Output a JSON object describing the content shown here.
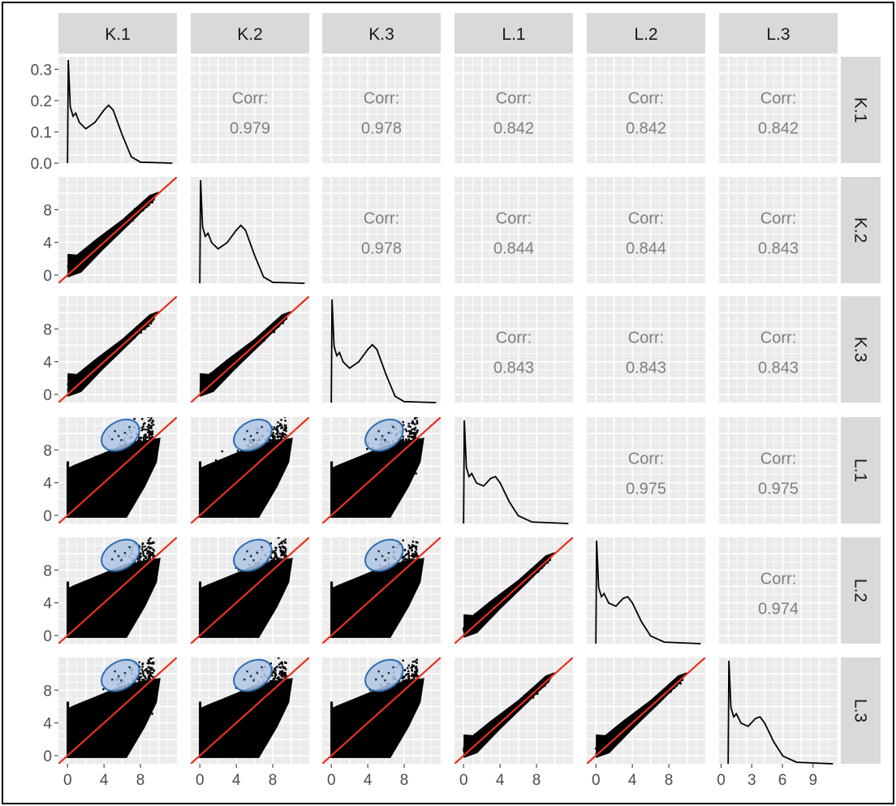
{
  "chart_data": {
    "type": "scatter-matrix",
    "variables": [
      "K.1",
      "K.2",
      "K.3",
      "L.1",
      "L.2",
      "L.3"
    ],
    "correlations": [
      {
        "row": "K.1",
        "col": "K.2",
        "label": "Corr:",
        "value": "0.979"
      },
      {
        "row": "K.1",
        "col": "K.3",
        "label": "Corr:",
        "value": "0.978"
      },
      {
        "row": "K.1",
        "col": "L.1",
        "label": "Corr:",
        "value": "0.842"
      },
      {
        "row": "K.1",
        "col": "L.2",
        "label": "Corr:",
        "value": "0.842"
      },
      {
        "row": "K.1",
        "col": "L.3",
        "label": "Corr:",
        "value": "0.842"
      },
      {
        "row": "K.2",
        "col": "K.3",
        "label": "Corr:",
        "value": "0.978"
      },
      {
        "row": "K.2",
        "col": "L.1",
        "label": "Corr:",
        "value": "0.844"
      },
      {
        "row": "K.2",
        "col": "L.2",
        "label": "Corr:",
        "value": "0.844"
      },
      {
        "row": "K.2",
        "col": "L.3",
        "label": "Corr:",
        "value": "0.843"
      },
      {
        "row": "K.3",
        "col": "L.1",
        "label": "Corr:",
        "value": "0.843"
      },
      {
        "row": "K.3",
        "col": "L.2",
        "label": "Corr:",
        "value": "0.843"
      },
      {
        "row": "K.3",
        "col": "L.3",
        "label": "Corr:",
        "value": "0.843"
      },
      {
        "row": "L.1",
        "col": "L.2",
        "label": "Corr:",
        "value": "0.975"
      },
      {
        "row": "L.1",
        "col": "L.3",
        "label": "Corr:",
        "value": "0.975"
      },
      {
        "row": "L.2",
        "col": "L.3",
        "label": "Corr:",
        "value": "0.974"
      }
    ],
    "x_axis": {
      "range": [
        -1,
        12
      ],
      "ticks": [
        0,
        4,
        8
      ],
      "last_column_ticks": [
        0,
        3,
        6,
        9
      ]
    },
    "y_axis_first_row": {
      "range": [
        0,
        0.34
      ],
      "ticks": [
        "0.0",
        "0.1",
        "0.2",
        "0.3"
      ]
    },
    "y_axis_scatter_rows": {
      "range": [
        -1,
        12
      ],
      "ticks": [
        0,
        4,
        8
      ]
    },
    "density_curves": {
      "K.1": [
        [
          0,
          0.0
        ],
        [
          0.08,
          0.33
        ],
        [
          0.3,
          0.18
        ],
        [
          0.6,
          0.15
        ],
        [
          0.9,
          0.16
        ],
        [
          1.3,
          0.13
        ],
        [
          2,
          0.11
        ],
        [
          3,
          0.13
        ],
        [
          4,
          0.17
        ],
        [
          4.5,
          0.185
        ],
        [
          5,
          0.17
        ],
        [
          6,
          0.09
        ],
        [
          7,
          0.02
        ],
        [
          8,
          0.003
        ],
        [
          11.5,
          0.0
        ]
      ],
      "K.2": [
        [
          0,
          0.0
        ],
        [
          0.08,
          0.33
        ],
        [
          0.3,
          0.18
        ],
        [
          0.6,
          0.15
        ],
        [
          0.9,
          0.16
        ],
        [
          1.3,
          0.13
        ],
        [
          2,
          0.11
        ],
        [
          3,
          0.13
        ],
        [
          4,
          0.17
        ],
        [
          4.5,
          0.185
        ],
        [
          5,
          0.17
        ],
        [
          6,
          0.09
        ],
        [
          7,
          0.02
        ],
        [
          8,
          0.003
        ],
        [
          11.5,
          0.0
        ]
      ],
      "K.3": [
        [
          0,
          0.0
        ],
        [
          0.08,
          0.33
        ],
        [
          0.3,
          0.18
        ],
        [
          0.6,
          0.15
        ],
        [
          0.9,
          0.16
        ],
        [
          1.3,
          0.13
        ],
        [
          2,
          0.11
        ],
        [
          3,
          0.13
        ],
        [
          4,
          0.17
        ],
        [
          4.5,
          0.185
        ],
        [
          5,
          0.17
        ],
        [
          6,
          0.09
        ],
        [
          7,
          0.02
        ],
        [
          8,
          0.003
        ],
        [
          11.5,
          0.0
        ]
      ],
      "L.1": [
        [
          0,
          0.0
        ],
        [
          0.08,
          0.33
        ],
        [
          0.3,
          0.18
        ],
        [
          0.6,
          0.15
        ],
        [
          0.9,
          0.16
        ],
        [
          1.4,
          0.13
        ],
        [
          2.2,
          0.12
        ],
        [
          3,
          0.145
        ],
        [
          3.5,
          0.15
        ],
        [
          4,
          0.13
        ],
        [
          5,
          0.07
        ],
        [
          6,
          0.025
        ],
        [
          7.5,
          0.005
        ],
        [
          11.5,
          0.0
        ]
      ],
      "L.2": [
        [
          0,
          0.0
        ],
        [
          0.08,
          0.33
        ],
        [
          0.3,
          0.18
        ],
        [
          0.6,
          0.15
        ],
        [
          0.9,
          0.16
        ],
        [
          1.4,
          0.13
        ],
        [
          2.2,
          0.12
        ],
        [
          3,
          0.145
        ],
        [
          3.5,
          0.15
        ],
        [
          4,
          0.13
        ],
        [
          5,
          0.07
        ],
        [
          6,
          0.025
        ],
        [
          7.5,
          0.005
        ],
        [
          11.5,
          0.0
        ]
      ],
      "L.3": [
        [
          0,
          0.0
        ],
        [
          0.08,
          0.33
        ],
        [
          0.3,
          0.18
        ],
        [
          0.6,
          0.15
        ],
        [
          0.9,
          0.16
        ],
        [
          1.4,
          0.13
        ],
        [
          2.2,
          0.12
        ],
        [
          3,
          0.145
        ],
        [
          3.5,
          0.15
        ],
        [
          4,
          0.13
        ],
        [
          5,
          0.07
        ],
        [
          6,
          0.025
        ],
        [
          7.5,
          0.005
        ],
        [
          11.5,
          0.0
        ]
      ]
    },
    "reference_line": {
      "description": "red identity line y = x",
      "color": "#e8311f"
    },
    "point_color": "#000000",
    "highlight_ellipses": {
      "color": "#2e6fb4",
      "fill": "#aec6e4",
      "rows": [
        "L.1",
        "L.2",
        "L.3"
      ],
      "cols": [
        "K.1",
        "K.2",
        "K.3"
      ],
      "center": [
        5.8,
        9.8
      ]
    },
    "colors": {
      "panel_background": "#ebebeb",
      "grid": "#ffffff",
      "strip_background": "#d9d9d9"
    },
    "grid": true
  }
}
